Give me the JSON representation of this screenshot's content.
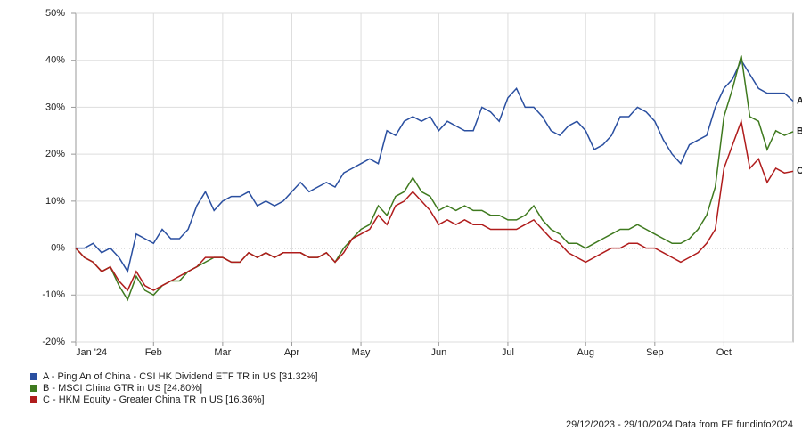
{
  "chart_data": {
    "type": "line",
    "categories": [
      "Jan '24",
      null,
      null,
      null,
      null,
      null,
      null,
      null,
      null,
      "Feb",
      null,
      null,
      null,
      null,
      null,
      null,
      null,
      "Mar",
      null,
      null,
      null,
      null,
      null,
      null,
      null,
      "Apr",
      null,
      null,
      null,
      null,
      null,
      null,
      null,
      "May",
      null,
      null,
      null,
      null,
      null,
      null,
      null,
      null,
      "Jun",
      null,
      null,
      null,
      null,
      null,
      null,
      null,
      "Jul",
      null,
      null,
      null,
      null,
      null,
      null,
      null,
      null,
      "Aug",
      null,
      null,
      null,
      null,
      null,
      null,
      null,
      "Sep",
      null,
      null,
      null,
      null,
      null,
      null,
      null,
      "Oct",
      null,
      null,
      null,
      null,
      null,
      null,
      null,
      null
    ],
    "series": [
      {
        "name": "A - Ping An of China - CSI HK Dividend ETF TR in US [31.32%]",
        "label": "A",
        "color": "#2a4fa0",
        "values": [
          0,
          0,
          1,
          -1,
          0,
          -2,
          -5,
          3,
          2,
          1,
          4,
          2,
          2,
          4,
          9,
          12,
          8,
          10,
          11,
          11,
          12,
          9,
          10,
          9,
          10,
          12,
          14,
          12,
          13,
          14,
          13,
          16,
          17,
          18,
          19,
          18,
          25,
          24,
          27,
          28,
          27,
          28,
          25,
          27,
          26,
          25,
          25,
          30,
          29,
          27,
          32,
          34,
          30,
          30,
          28,
          25,
          24,
          26,
          27,
          25,
          21,
          22,
          24,
          28,
          28,
          30,
          29,
          27,
          23,
          20,
          18,
          22,
          23,
          24,
          30,
          34,
          36,
          40,
          37,
          34,
          33,
          33,
          33,
          31.32
        ]
      },
      {
        "name": "B - MSCI China GTR in US [24.80%]",
        "label": "B",
        "color": "#3f7a1f",
        "values": [
          0,
          -2,
          -3,
          -5,
          -4,
          -8,
          -11,
          -6,
          -9,
          -10,
          -8,
          -7,
          -7,
          -5,
          -4,
          -3,
          -2,
          -2,
          -3,
          -3,
          -1,
          -2,
          -1,
          -2,
          -1,
          -1,
          -1,
          -2,
          -2,
          -1,
          -3,
          0,
          2,
          4,
          5,
          9,
          7,
          11,
          12,
          15,
          12,
          11,
          8,
          9,
          8,
          9,
          8,
          8,
          7,
          7,
          6,
          6,
          7,
          9,
          6,
          4,
          3,
          1,
          1,
          0,
          1,
          2,
          3,
          4,
          4,
          5,
          4,
          3,
          2,
          1,
          1,
          2,
          4,
          7,
          13,
          28,
          34,
          41,
          28,
          27,
          21,
          25,
          24,
          24.8
        ]
      },
      {
        "name": "C - HKM Equity - Greater China TR in US [16.36%]",
        "label": "C",
        "color": "#b01c1c",
        "values": [
          0,
          -2,
          -3,
          -5,
          -4,
          -7,
          -9,
          -5,
          -8,
          -9,
          -8,
          -7,
          -6,
          -5,
          -4,
          -2,
          -2,
          -2,
          -3,
          -3,
          -1,
          -2,
          -1,
          -2,
          -1,
          -1,
          -1,
          -2,
          -2,
          -1,
          -3,
          -1,
          2,
          3,
          4,
          7,
          5,
          9,
          10,
          12,
          10,
          8,
          5,
          6,
          5,
          6,
          5,
          5,
          4,
          4,
          4,
          4,
          5,
          6,
          4,
          2,
          1,
          -1,
          -2,
          -3,
          -2,
          -1,
          0,
          0,
          1,
          1,
          0,
          0,
          -1,
          -2,
          -3,
          -2,
          -1,
          1,
          4,
          17,
          22,
          27,
          17,
          19,
          14,
          17,
          16,
          16.36
        ]
      }
    ],
    "ylim": [
      -20,
      50
    ],
    "yticks": [
      {
        "value": -20,
        "label": "-20%"
      },
      {
        "value": -10,
        "label": "-10%"
      },
      {
        "value": 0,
        "label": "0%"
      },
      {
        "value": 10,
        "label": "10%"
      },
      {
        "value": 20,
        "label": "20%"
      },
      {
        "value": 30,
        "label": "30%"
      },
      {
        "value": 40,
        "label": "40%"
      },
      {
        "value": 50,
        "label": "50%"
      }
    ],
    "grid": true,
    "footer": "29/12/2023 - 29/10/2024 Data from FE fundinfo2024"
  }
}
